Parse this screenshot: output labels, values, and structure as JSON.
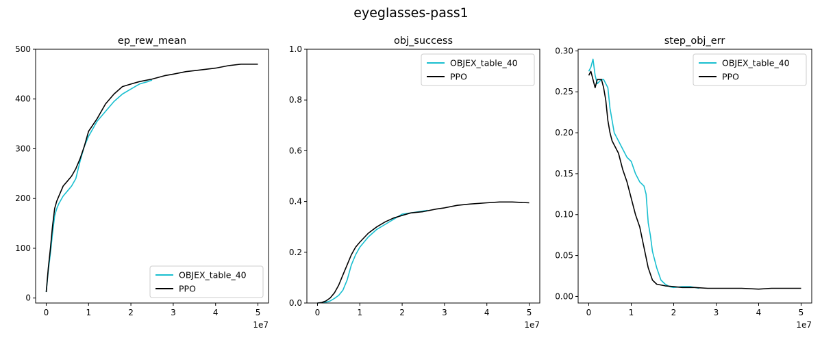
{
  "figure": {
    "suptitle": "eyeglasses-pass1"
  },
  "colors": {
    "objex": "#17becf",
    "ppo": "#000000"
  },
  "chart_data": [
    {
      "type": "line",
      "title": "ep_rew_mean",
      "xlabel": "",
      "ylabel": "",
      "x_scale_label": "1e7",
      "xlim": [
        -0.25,
        5.25
      ],
      "ylim": [
        -10,
        500
      ],
      "xticks": [
        0,
        1,
        2,
        3,
        4,
        5
      ],
      "xtick_labels": [
        "0",
        "1",
        "2",
        "3",
        "4",
        "5"
      ],
      "yticks": [
        0,
        100,
        200,
        300,
        400,
        500
      ],
      "ytick_labels": [
        "0",
        "100",
        "200",
        "300",
        "400",
        "500"
      ],
      "legend": "lower-right",
      "series": [
        {
          "name": "OBJEX_table_40",
          "color_key": "objex",
          "x": [
            0,
            0.05,
            0.1,
            0.15,
            0.2,
            0.25,
            0.3,
            0.4,
            0.5,
            0.6,
            0.7,
            0.8,
            0.9,
            1.0,
            1.1,
            1.2,
            1.4,
            1.6,
            1.8,
            2.0,
            2.2,
            2.4,
            2.5
          ],
          "y": [
            12,
            55,
            90,
            130,
            165,
            180,
            190,
            205,
            215,
            225,
            240,
            275,
            305,
            325,
            340,
            355,
            375,
            395,
            410,
            420,
            430,
            435,
            438
          ]
        },
        {
          "name": "PPO",
          "color_key": "ppo",
          "x": [
            0,
            0.05,
            0.1,
            0.15,
            0.2,
            0.25,
            0.3,
            0.4,
            0.5,
            0.6,
            0.7,
            0.8,
            0.9,
            1.0,
            1.2,
            1.4,
            1.6,
            1.8,
            2.0,
            2.2,
            2.5,
            2.8,
            3.0,
            3.3,
            3.6,
            4.0,
            4.3,
            4.6,
            5.0
          ],
          "y": [
            12,
            60,
            100,
            145,
            180,
            195,
            205,
            225,
            235,
            245,
            260,
            280,
            305,
            335,
            360,
            390,
            410,
            425,
            430,
            435,
            440,
            447,
            450,
            455,
            458,
            462,
            467,
            470,
            470
          ]
        }
      ]
    },
    {
      "type": "line",
      "title": "obj_success",
      "xlabel": "",
      "ylabel": "",
      "x_scale_label": "1e7",
      "xlim": [
        -0.25,
        5.25
      ],
      "ylim": [
        0,
        1.0
      ],
      "xticks": [
        0,
        1,
        2,
        3,
        4,
        5
      ],
      "xtick_labels": [
        "0",
        "1",
        "2",
        "3",
        "4",
        "5"
      ],
      "yticks": [
        0,
        0.2,
        0.4,
        0.6,
        0.8,
        1.0
      ],
      "ytick_labels": [
        "0.0",
        "0.2",
        "0.4",
        "0.6",
        "0.8",
        "1.0"
      ],
      "legend": "top-right",
      "series": [
        {
          "name": "OBJEX_table_40",
          "color_key": "objex",
          "x": [
            0,
            0.2,
            0.3,
            0.4,
            0.5,
            0.6,
            0.7,
            0.8,
            0.9,
            1.0,
            1.2,
            1.4,
            1.6,
            1.8,
            2.0,
            2.2,
            2.4,
            2.6
          ],
          "y": [
            0,
            0.003,
            0.008,
            0.018,
            0.03,
            0.05,
            0.09,
            0.15,
            0.19,
            0.22,
            0.26,
            0.29,
            0.31,
            0.33,
            0.35,
            0.355,
            0.36,
            0.365
          ]
        },
        {
          "name": "PPO",
          "color_key": "ppo",
          "x": [
            0,
            0.1,
            0.2,
            0.3,
            0.4,
            0.5,
            0.6,
            0.7,
            0.8,
            0.9,
            1.0,
            1.2,
            1.4,
            1.6,
            1.8,
            2.0,
            2.2,
            2.5,
            2.8,
            3.0,
            3.3,
            3.6,
            4.0,
            4.3,
            4.6,
            5.0
          ],
          "y": [
            0,
            0.002,
            0.008,
            0.02,
            0.04,
            0.07,
            0.11,
            0.15,
            0.19,
            0.22,
            0.24,
            0.275,
            0.3,
            0.32,
            0.335,
            0.345,
            0.355,
            0.36,
            0.37,
            0.375,
            0.385,
            0.39,
            0.395,
            0.398,
            0.398,
            0.395
          ]
        }
      ]
    },
    {
      "type": "line",
      "title": "step_obj_err",
      "xlabel": "",
      "ylabel": "",
      "x_scale_label": "1e7",
      "xlim": [
        -0.25,
        5.25
      ],
      "ylim": [
        -0.008,
        0.302
      ],
      "xticks": [
        0,
        1,
        2,
        3,
        4,
        5
      ],
      "xtick_labels": [
        "0",
        "1",
        "2",
        "3",
        "4",
        "5"
      ],
      "yticks": [
        0,
        0.05,
        0.1,
        0.15,
        0.2,
        0.25,
        0.3
      ],
      "ytick_labels": [
        "0.00",
        "0.05",
        "0.10",
        "0.15",
        "0.20",
        "0.25",
        "0.30"
      ],
      "legend": "top-right",
      "series": [
        {
          "name": "OBJEX_table_40",
          "color_key": "objex",
          "x": [
            0,
            0.05,
            0.1,
            0.15,
            0.2,
            0.3,
            0.35,
            0.45,
            0.5,
            0.6,
            0.7,
            0.8,
            0.9,
            1.0,
            1.1,
            1.2,
            1.3,
            1.35,
            1.4,
            1.45,
            1.5,
            1.6,
            1.7,
            1.8,
            1.9,
            2.0,
            2.2,
            2.4,
            2.6
          ],
          "y": [
            0.275,
            0.28,
            0.29,
            0.27,
            0.26,
            0.265,
            0.265,
            0.255,
            0.23,
            0.2,
            0.19,
            0.18,
            0.17,
            0.165,
            0.15,
            0.14,
            0.135,
            0.125,
            0.09,
            0.075,
            0.055,
            0.035,
            0.02,
            0.015,
            0.012,
            0.011,
            0.012,
            0.012,
            0.01
          ]
        },
        {
          "name": "PPO",
          "color_key": "ppo",
          "x": [
            0,
            0.05,
            0.1,
            0.15,
            0.2,
            0.3,
            0.35,
            0.4,
            0.45,
            0.5,
            0.55,
            0.6,
            0.7,
            0.8,
            0.9,
            1.0,
            1.1,
            1.2,
            1.3,
            1.4,
            1.5,
            1.6,
            1.8,
            2.0,
            2.2,
            2.5,
            2.8,
            3.0,
            3.3,
            3.6,
            4.0,
            4.3,
            4.6,
            5.0
          ],
          "y": [
            0.27,
            0.275,
            0.265,
            0.255,
            0.265,
            0.265,
            0.255,
            0.24,
            0.215,
            0.2,
            0.19,
            0.185,
            0.175,
            0.155,
            0.14,
            0.12,
            0.1,
            0.085,
            0.06,
            0.035,
            0.02,
            0.015,
            0.013,
            0.012,
            0.011,
            0.011,
            0.01,
            0.01,
            0.01,
            0.01,
            0.009,
            0.01,
            0.01,
            0.01
          ]
        }
      ]
    }
  ]
}
